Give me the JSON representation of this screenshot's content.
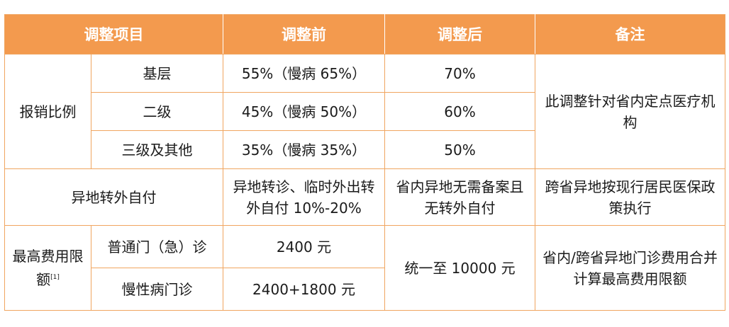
{
  "header": {
    "item": "调整项目",
    "before": "调整前",
    "after": "调整后",
    "note": "备注"
  },
  "reimbursement": {
    "label": "报销比例",
    "note": "此调整针对省内定点医疗机构",
    "rows": [
      {
        "level": "基层",
        "before": "55%（慢病 65%）",
        "after": "70%"
      },
      {
        "level": "二级",
        "before": "45%（慢病 50%）",
        "after": "60%"
      },
      {
        "level": "三级及其他",
        "before": "35%（慢病 35%）",
        "after": "50%"
      }
    ]
  },
  "transfer": {
    "label": "异地转外自付",
    "before": "异地转诊、临时外出转外自付 10%-20%",
    "after": "省内异地无需备案且无转外自付",
    "note": "跨省异地按现行居民医保政策执行"
  },
  "limit": {
    "label": "最高费用限额",
    "footnote": "[1]",
    "rows": [
      {
        "type": "普通门（急）诊",
        "before": "2400 元"
      },
      {
        "type": "慢性病门诊",
        "before": "2400+1800 元"
      }
    ],
    "after": "统一至 10000 元",
    "note": "省内/跨省异地门诊费用合并计算最高费用限额"
  }
}
